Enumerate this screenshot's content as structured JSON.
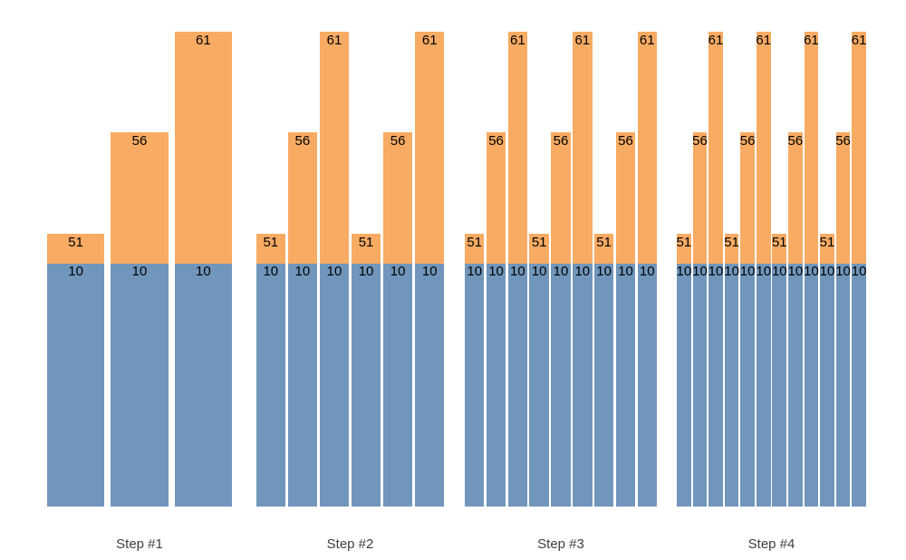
{
  "chart_data": {
    "type": "bar",
    "stacked": true,
    "title": "",
    "xlabel": "",
    "ylabel": "",
    "axes_visible": false,
    "grid": false,
    "legend": null,
    "base_label": "10",
    "base_value": 10,
    "groups": [
      {
        "label": "Step #1",
        "values": [
          51,
          56,
          61
        ]
      },
      {
        "label": "Step #2",
        "values": [
          51,
          56,
          61,
          51,
          56,
          61
        ]
      },
      {
        "label": "Step #3",
        "values": [
          51,
          56,
          61,
          51,
          56,
          61,
          51,
          56,
          61
        ]
      },
      {
        "label": "Step #4",
        "values": [
          51,
          56,
          61,
          51,
          56,
          61,
          51,
          56,
          61,
          51,
          56,
          61
        ]
      }
    ],
    "colors": {
      "top_segment": "#F8AB63",
      "base_segment": "#7196BC",
      "value_label_text": "#000000",
      "group_label_text": "#3E3E3E",
      "background": "#FFFFFF"
    }
  }
}
